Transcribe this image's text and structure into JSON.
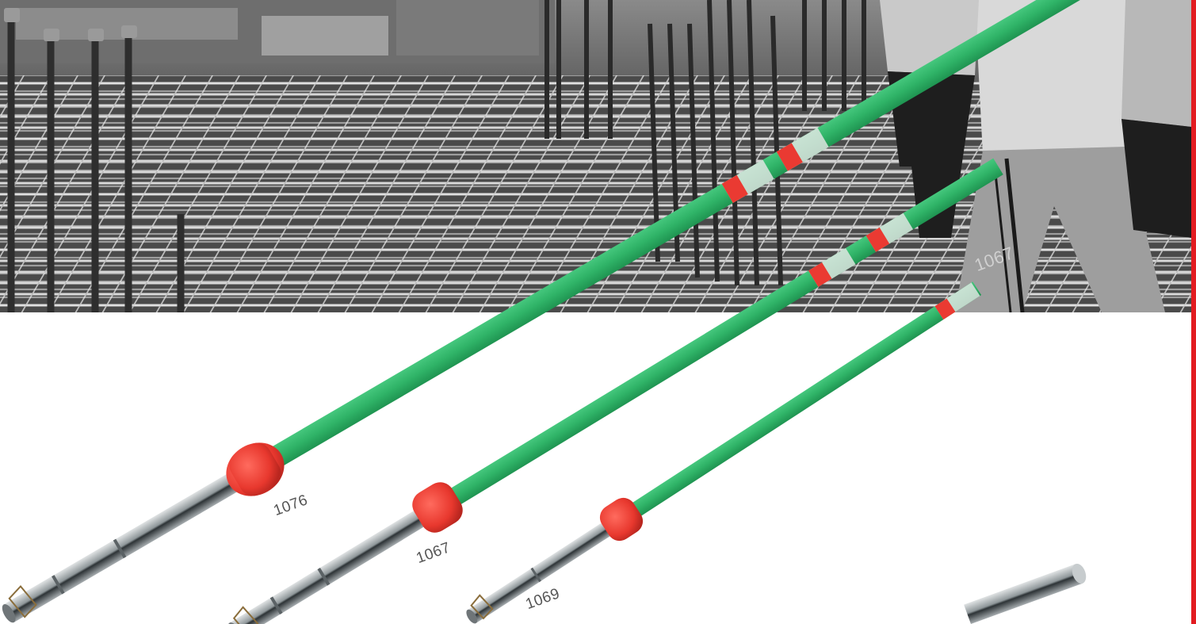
{
  "colors": {
    "accent_bar": "#e21c21",
    "hose_green": "#2fb367",
    "hose_green_dark": "#1f9451",
    "collar_red": "#ea3a32",
    "steel": "#9aa1a3",
    "background": "#ffffff"
  },
  "hero": {
    "icon": "construction-site-photo",
    "mode": "grayscale"
  },
  "products": [
    {
      "model": "1076"
    },
    {
      "model": "1067"
    },
    {
      "model": "1069"
    }
  ],
  "overlay_label": "1067"
}
